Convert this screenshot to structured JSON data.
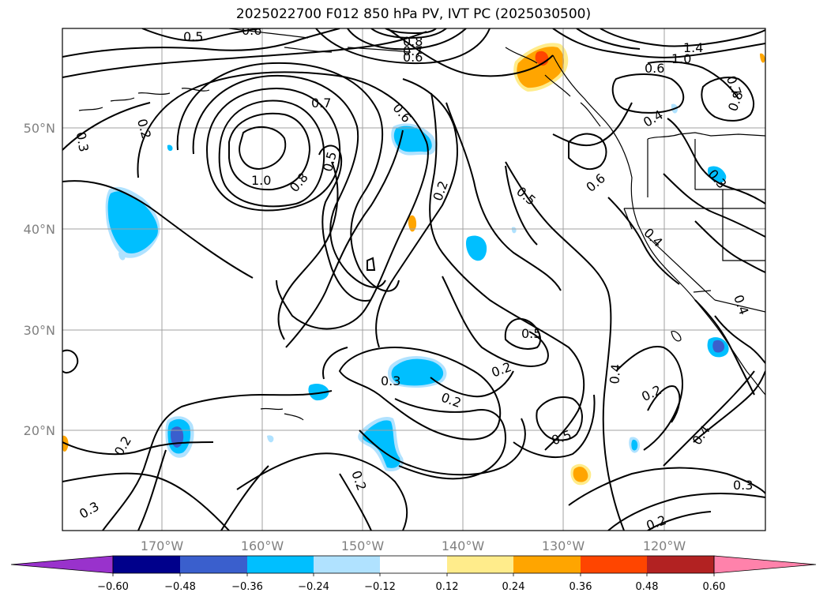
{
  "title": "2025022700 F012 850 hPa PV, IVT PC (2025030500)",
  "lat_labels": [
    "50°N",
    "40°N",
    "30°N",
    "20°N"
  ],
  "lon_labels": [
    "170°W",
    "160°W",
    "150°W",
    "140°W",
    "130°W",
    "120°W"
  ],
  "contour_labels": [
    "0.5",
    "0.6",
    "0.8",
    "0.7",
    "0.6",
    "1.4",
    "1.0",
    "0.6",
    "0.7",
    "0.8",
    "0.3",
    "0.2",
    "0.7",
    "0.6",
    "0.4",
    "1.0",
    "0.8",
    "0.5",
    "0.2",
    "0.6",
    "0.5",
    "0.3",
    "0.4",
    "0.4",
    "0.5",
    "0.2",
    "0.3",
    "0.4",
    "0.2",
    "0.2",
    "0.5",
    "0.2",
    "0.4",
    "0.2",
    "0.3",
    "0.3",
    "0.2"
  ],
  "colorbar": {
    "ticks": [
      "−0.60",
      "−0.48",
      "−0.36",
      "−0.24",
      "−0.12",
      "0.12",
      "0.24",
      "0.36",
      "0.48",
      "0.60"
    ],
    "colors": [
      "#9932cc",
      "#00008b",
      "#3a5fcd",
      "#00bfff",
      "#b0e2ff",
      "#ffffff",
      "#ffec8b",
      "#ffa500",
      "#ff4500",
      "#b22222",
      "#ff82ab"
    ]
  }
}
